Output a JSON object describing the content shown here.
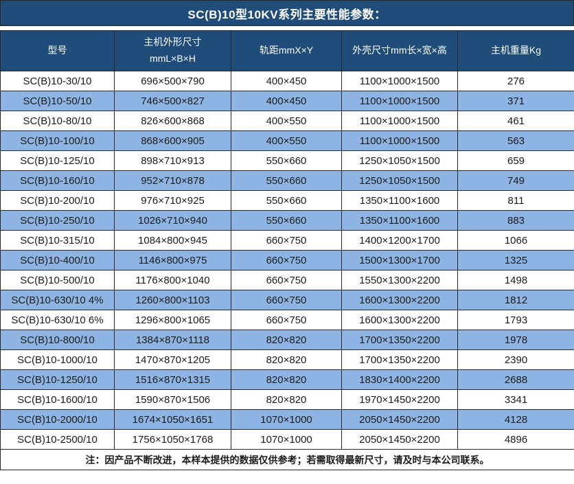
{
  "title": "SC(B)10型10KV系列主要性能参数：",
  "colors": {
    "header_bg": "#1F4C78",
    "alt_row_bg": "#8DB4E2",
    "border": "#262626",
    "header_text": "#FFFFFF",
    "body_text": "#1A1A1A"
  },
  "table": {
    "columns": [
      {
        "label": "型号"
      },
      {
        "label": "主机外形尺寸",
        "label2": "mmL×B×H"
      },
      {
        "label": "轨距mmX×Y"
      },
      {
        "label": "外壳尺寸mm长×宽×高"
      },
      {
        "label": "主机重量Kg"
      }
    ],
    "rows": [
      [
        "SC(B)10-30/10",
        "696×500×790",
        "400×450",
        "1100×1000×1500",
        "276"
      ],
      [
        "SC(B)10-50/10",
        "746×500×827",
        "400×450",
        "1100×1000×1500",
        "371"
      ],
      [
        "SC(B)10-80/10",
        "826×600×868",
        "400×550",
        "1100×1000×1500",
        "461"
      ],
      [
        "SC(B)10-100/10",
        "868×600×905",
        "400×550",
        "1100×1000×1500",
        "563"
      ],
      [
        "SC(B)10-125/10",
        "898×710×913",
        "550×660",
        "1250×1050×1500",
        "659"
      ],
      [
        "SC(B)10-160/10",
        "952×710×878",
        "550×660",
        "1250×1050×1500",
        "749"
      ],
      [
        "SC(B)10-200/10",
        "976×710×925",
        "550×660",
        "1350×1100×1600",
        "811"
      ],
      [
        "SC(B)10-250/10",
        "1026×710×940",
        "550×660",
        "1350×1100×1600",
        "883"
      ],
      [
        "SC(B)10-315/10",
        "1084×800×945",
        "660×750",
        "1400×1200×1700",
        "1066"
      ],
      [
        "SC(B)10-400/10",
        "1146×800×975",
        "660×750",
        "1500×1300×1700",
        "1325"
      ],
      [
        "SC(B)10-500/10",
        "1176×800×1040",
        "660×750",
        "1550×1300×2200",
        "1498"
      ],
      [
        "SC(B)10-630/10 4%",
        "1260×800×1103",
        "660×750",
        "1600×1300×2200",
        "1812"
      ],
      [
        "SC(B)10-630/10 6%",
        "1296×800×1065",
        "660×750",
        "1600×1300×2200",
        "1793"
      ],
      [
        "SC(B)10-800/10",
        "1384×870×1118",
        "820×820",
        "1700×1350×2200",
        "1978"
      ],
      [
        "SC(B)10-1000/10",
        "1470×870×1205",
        "820×820",
        "1700×1350×2200",
        "2390"
      ],
      [
        "SC(B)10-1250/10",
        "1516×870×1315",
        "820×820",
        "1830×1400×2200",
        "2688"
      ],
      [
        "SC(B)10-1600/10",
        "1590×870×1506",
        "820×820",
        "1970×1450×2200",
        "3341"
      ],
      [
        "SC(B)10-2000/10",
        "1674×1050×1651",
        "1070×1000",
        "2050×1450×2200",
        "4128"
      ],
      [
        "SC(B)10-2500/10",
        "1756×1050×1768",
        "1070×1000",
        "2050×1450×2200",
        "4896"
      ]
    ],
    "note": "注：因产品不断改进，本样本提供的数据仅供参考；若需取得最新尺寸，请及时与本公司联系。"
  }
}
